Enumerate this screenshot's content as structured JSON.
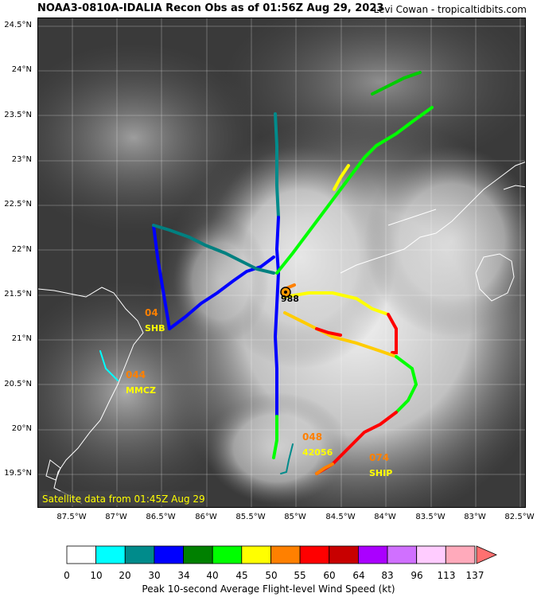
{
  "header": {
    "title": "NOAA3-0810A-IDALIA Recon Obs as of 01:56Z Aug 29, 2023",
    "credit": "Levi Cowan - tropicaltidbits.com"
  },
  "map": {
    "satellite_note": "Satellite data from 01:45Z Aug 29",
    "center_pressure": "988",
    "lat_labels": [
      "24.5°N",
      "24°N",
      "23.5°N",
      "23°N",
      "22.5°N",
      "22°N",
      "21.5°N",
      "21°N",
      "20.5°N",
      "20°N",
      "19.5°N"
    ],
    "lon_labels": [
      "87.5°W",
      "87°W",
      "86.5°W",
      "86°W",
      "85.5°W",
      "85°W",
      "84.5°W",
      "84°W",
      "83.5°W",
      "83°W",
      "82.5°W"
    ],
    "stations": [
      {
        "name": "SHB",
        "wind": "04"
      },
      {
        "name": "MMCZ",
        "wind": "044"
      },
      {
        "name": "42056",
        "wind": "048"
      },
      {
        "name": "SHIP",
        "wind": "074"
      }
    ],
    "colors": {
      "land_outline": "#ffffff",
      "cloud": "#d8d8d8",
      "ocean": "#3a3a3a"
    }
  },
  "colorbar": {
    "label": "Peak 10-second Average Flight-level Wind Speed (kt)",
    "ticks": [
      "0",
      "10",
      "20",
      "30",
      "34",
      "40",
      "45",
      "50",
      "55",
      "60",
      "64",
      "83",
      "96",
      "113",
      "137"
    ],
    "colors": [
      "#ffffff",
      "#00ffff",
      "#008b8b",
      "#0000ff",
      "#008000",
      "#00ff00",
      "#ffff00",
      "#ff8000",
      "#ff0000",
      "#c80000",
      "#aa00ff",
      "#d070ff",
      "#ffccff",
      "#ffaabb"
    ],
    "extend_color": "#ff7070"
  }
}
